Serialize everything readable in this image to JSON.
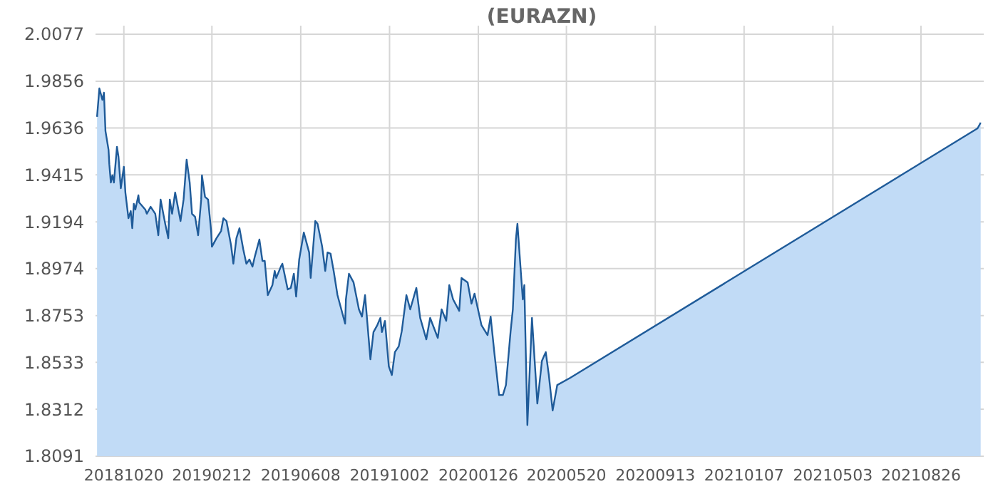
{
  "chart_data": {
    "type": "area",
    "title": "(EURAZN)",
    "x": [
      "2018-09-15",
      "2018-09-18",
      "2018-09-22",
      "2018-09-24",
      "2018-09-26",
      "2018-09-30",
      "2018-10-01",
      "2018-10-03",
      "2018-10-05",
      "2018-10-07",
      "2018-10-11",
      "2018-10-13",
      "2018-10-16",
      "2018-10-20",
      "2018-10-22",
      "2018-10-26",
      "2018-10-29",
      "2018-10-31",
      "2018-11-02",
      "2018-11-04",
      "2018-11-08",
      "2018-11-09",
      "2018-11-17",
      "2018-11-19",
      "2018-11-24",
      "2018-11-30",
      "2018-12-04",
      "2018-12-07",
      "2018-12-13",
      "2018-12-17",
      "2018-12-19",
      "2018-12-22",
      "2018-12-26",
      "2019-01-02",
      "2019-01-06",
      "2019-01-10",
      "2019-01-14",
      "2019-01-17",
      "2019-01-21",
      "2019-01-25",
      "2019-01-29",
      "2019-01-30",
      "2019-02-03",
      "2019-02-07",
      "2019-02-11",
      "2019-02-12",
      "2019-02-18",
      "2019-02-24",
      "2019-02-27",
      "2019-03-03",
      "2019-03-09",
      "2019-03-12",
      "2019-03-16",
      "2019-03-20",
      "2019-03-25",
      "2019-03-29",
      "2019-04-02",
      "2019-04-06",
      "2019-04-09",
      "2019-04-13",
      "2019-04-15",
      "2019-04-19",
      "2019-04-22",
      "2019-04-26",
      "2019-05-02",
      "2019-05-05",
      "2019-05-07",
      "2019-05-13",
      "2019-05-15",
      "2019-05-22",
      "2019-05-26",
      "2019-05-30",
      "2019-06-02",
      "2019-06-06",
      "2019-06-12",
      "2019-06-19",
      "2019-06-21",
      "2019-06-27",
      "2019-06-30",
      "2019-07-06",
      "2019-07-10",
      "2019-07-13",
      "2019-07-17",
      "2019-07-21",
      "2019-07-26",
      "2019-08-05",
      "2019-08-06",
      "2019-08-10",
      "2019-08-16",
      "2019-08-23",
      "2019-08-27",
      "2019-08-31",
      "2019-09-07",
      "2019-09-11",
      "2019-09-16",
      "2019-09-20",
      "2019-09-22",
      "2019-09-26",
      "2019-10-01",
      "2019-10-05",
      "2019-10-09",
      "2019-10-14",
      "2019-10-18",
      "2019-10-24",
      "2019-10-29",
      "2019-11-06",
      "2019-11-11",
      "2019-11-19",
      "2019-11-24",
      "2019-12-04",
      "2019-12-09",
      "2019-12-15",
      "2019-12-19",
      "2019-12-24",
      "2020-01-01",
      "2020-01-04",
      "2020-01-12",
      "2020-01-17",
      "2020-01-21",
      "2020-01-30",
      "2020-02-07",
      "2020-02-11",
      "2020-02-16",
      "2020-02-22",
      "2020-02-27",
      "2020-03-02",
      "2020-03-08",
      "2020-03-11",
      "2020-03-15",
      "2020-03-17",
      "2020-03-24",
      "2020-03-26",
      "2020-03-30",
      "2020-04-05",
      "2020-04-12",
      "2020-04-18",
      "2020-04-23",
      "2020-04-27",
      "2020-05-02",
      "2020-05-08",
      "2020-05-25",
      "2021-11-08",
      "2021-11-12"
    ],
    "series": [
      {
        "color": "#1f5b99",
        "values": [
          1.9688,
          1.9822,
          1.9768,
          1.9802,
          1.9621,
          1.9533,
          1.9466,
          1.9379,
          1.9413,
          1.9379,
          1.9547,
          1.95,
          1.9352,
          1.9453,
          1.9332,
          1.9211,
          1.9245,
          1.9164,
          1.9279,
          1.9252,
          1.9319,
          1.9285,
          1.9252,
          1.9232,
          1.9265,
          1.9232,
          1.9131,
          1.9299,
          1.9185,
          1.9117,
          1.9299,
          1.9232,
          1.9332,
          1.9198,
          1.9299,
          1.9487,
          1.9379,
          1.9232,
          1.9218,
          1.9131,
          1.9299,
          1.9413,
          1.9312,
          1.9299,
          1.9151,
          1.9077,
          1.9117,
          1.9151,
          1.9211,
          1.9198,
          1.9084,
          1.8997,
          1.9117,
          1.9164,
          1.9064,
          1.8997,
          1.9017,
          1.8983,
          1.903,
          1.9084,
          1.9111,
          1.901,
          1.901,
          1.8849,
          1.8896,
          1.8963,
          1.893,
          1.8983,
          1.8997,
          1.8876,
          1.8883,
          1.895,
          1.8842,
          1.9017,
          1.9144,
          1.905,
          1.893,
          1.9198,
          1.9185,
          1.9077,
          1.8963,
          1.905,
          1.9044,
          1.8963,
          1.8849,
          1.8715,
          1.8829,
          1.895,
          1.8909,
          1.8782,
          1.8748,
          1.8849,
          1.8547,
          1.8675,
          1.8708,
          1.8742,
          1.8675,
          1.8728,
          1.8514,
          1.8473,
          1.8581,
          1.8608,
          1.8681,
          1.8849,
          1.8782,
          1.8883,
          1.8742,
          1.8641,
          1.8742,
          1.8648,
          1.8782,
          1.8728,
          1.8896,
          1.8829,
          1.8775,
          1.893,
          1.8909,
          1.8809,
          1.8856,
          1.8708,
          1.8661,
          1.8748,
          1.8574,
          1.8379,
          1.8379,
          1.8426,
          1.8675,
          1.8782,
          1.9111,
          1.9185,
          1.8829,
          1.8896,
          1.8238,
          1.8742,
          1.8339,
          1.854,
          1.8581,
          1.8473,
          1.8306,
          1.8426,
          1.846,
          1.9634,
          1.9661
        ]
      }
    ],
    "xlim": [
      "2018-09-13",
      "2021-11-16"
    ],
    "xticks": [
      {
        "value": "2018-10-20",
        "label": "20181020"
      },
      {
        "value": "2019-02-12",
        "label": "20190212"
      },
      {
        "value": "2019-06-08",
        "label": "20190608"
      },
      {
        "value": "2019-10-02",
        "label": "20191002"
      },
      {
        "value": "2020-01-26",
        "label": "20200126"
      },
      {
        "value": "2020-05-20",
        "label": "20200520"
      },
      {
        "value": "2020-09-13",
        "label": "20200913"
      },
      {
        "value": "2021-01-07",
        "label": "20210107"
      },
      {
        "value": "2021-05-03",
        "label": "20210503"
      },
      {
        "value": "2021-08-26",
        "label": "20210826"
      }
    ],
    "ylim": [
      1.8091,
      2.0077
    ],
    "yticks": [
      1.8091,
      1.8312,
      1.8533,
      1.8753,
      1.8974,
      1.9194,
      1.9415,
      1.9636,
      1.9856,
      2.0077
    ],
    "grid": true
  }
}
